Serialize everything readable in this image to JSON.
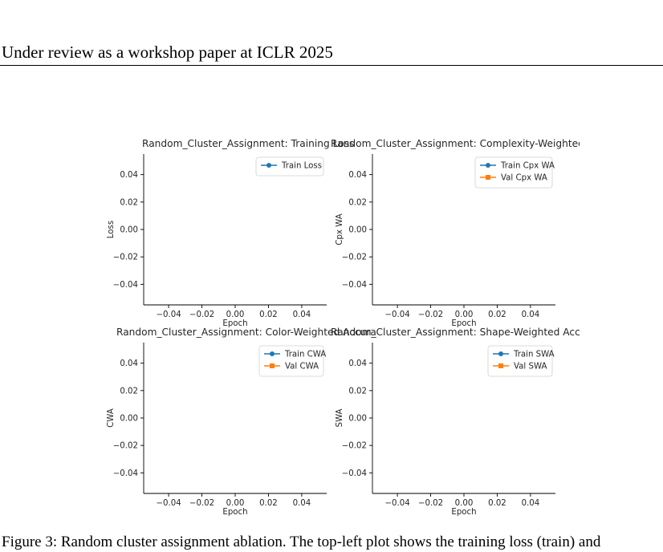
{
  "page": {
    "header": "Under review as a workshop paper at ICLR 2025",
    "caption": "Figure 3: Random cluster assignment ablation. The top-left plot shows the training loss (train) and"
  },
  "chart_data": [
    {
      "type": "line",
      "title": "Random_Cluster_Assignment: Training Loss",
      "xlabel": "Epoch",
      "ylabel": "Loss",
      "xlim": [
        -0.055,
        0.055
      ],
      "ylim": [
        -0.055,
        0.055
      ],
      "xticks": [
        "−0.04",
        "−0.02",
        "0.00",
        "0.02",
        "0.04"
      ],
      "yticks": [
        "−0.04",
        "−0.02",
        "0.00",
        "0.02",
        "0.04"
      ],
      "grid": false,
      "legend_position": "upper right",
      "series": [
        {
          "name": "Train Loss",
          "color": "#1f77b4",
          "marker": "circle",
          "x": [],
          "y": []
        }
      ]
    },
    {
      "type": "line",
      "title": "Random_Cluster_Assignment: Complexity-Weighted Ac",
      "xlabel": "Epoch",
      "ylabel": "Cpx WA",
      "xlim": [
        -0.055,
        0.055
      ],
      "ylim": [
        -0.055,
        0.055
      ],
      "xticks": [
        "−0.04",
        "−0.02",
        "0.00",
        "0.02",
        "0.04"
      ],
      "yticks": [
        "−0.04",
        "−0.02",
        "0.00",
        "0.02",
        "0.04"
      ],
      "grid": false,
      "legend_position": "upper right",
      "series": [
        {
          "name": "Train Cpx WA",
          "color": "#1f77b4",
          "marker": "circle",
          "x": [],
          "y": []
        },
        {
          "name": "Val Cpx WA",
          "color": "#ff7f0e",
          "marker": "square",
          "x": [],
          "y": []
        }
      ]
    },
    {
      "type": "line",
      "title": "Random_Cluster_Assignment: Color-Weighted Accura",
      "xlabel": "Epoch",
      "ylabel": "CWA",
      "xlim": [
        -0.055,
        0.055
      ],
      "ylim": [
        -0.055,
        0.055
      ],
      "xticks": [
        "−0.04",
        "−0.02",
        "0.00",
        "0.02",
        "0.04"
      ],
      "yticks": [
        "−0.04",
        "−0.02",
        "0.00",
        "0.02",
        "0.04"
      ],
      "grid": false,
      "legend_position": "upper right",
      "series": [
        {
          "name": "Train CWA",
          "color": "#1f77b4",
          "marker": "circle",
          "x": [],
          "y": []
        },
        {
          "name": "Val CWA",
          "color": "#ff7f0e",
          "marker": "square",
          "x": [],
          "y": []
        }
      ]
    },
    {
      "type": "line",
      "title": "Random_Cluster_Assignment: Shape-Weighted Accu",
      "xlabel": "Epoch",
      "ylabel": "SWA",
      "xlim": [
        -0.055,
        0.055
      ],
      "ylim": [
        -0.055,
        0.055
      ],
      "xticks": [
        "−0.04",
        "−0.02",
        "0.00",
        "0.02",
        "0.04"
      ],
      "yticks": [
        "−0.04",
        "−0.02",
        "0.00",
        "0.02",
        "0.04"
      ],
      "grid": false,
      "legend_position": "upper right",
      "series": [
        {
          "name": "Train SWA",
          "color": "#1f77b4",
          "marker": "circle",
          "x": [],
          "y": []
        },
        {
          "name": "Val SWA",
          "color": "#ff7f0e",
          "marker": "square",
          "x": [],
          "y": []
        }
      ]
    }
  ]
}
